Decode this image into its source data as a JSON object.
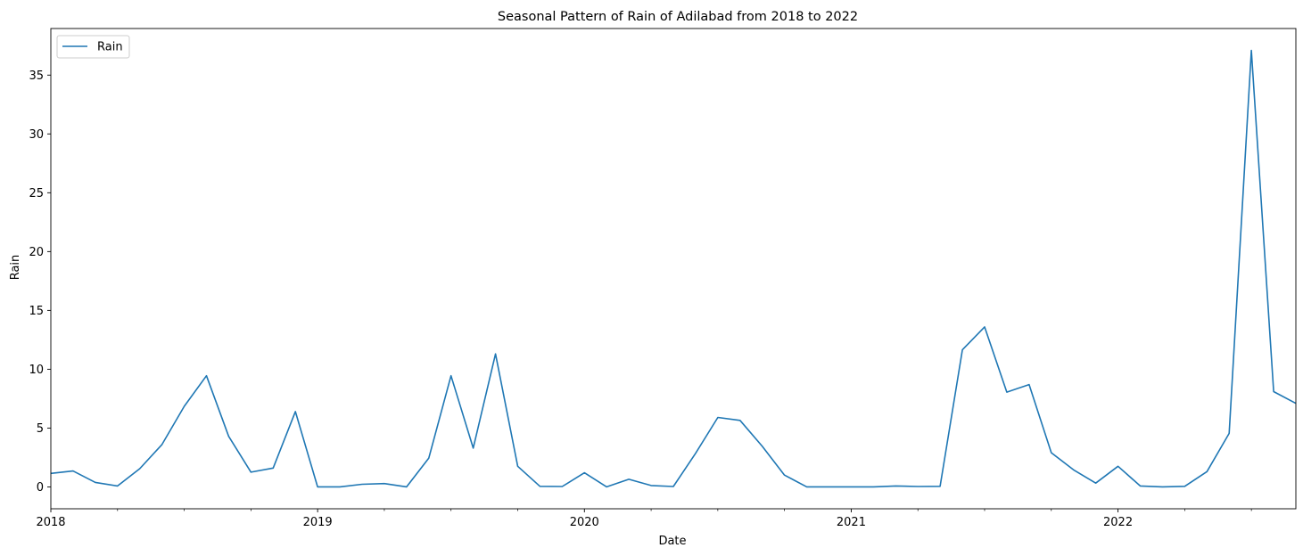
{
  "chart_data": {
    "type": "line",
    "title": "Seasonal Pattern of Rain of Adilabad from 2018 to 2022",
    "xlabel": "Date",
    "ylabel": "Rain",
    "x_range": [
      "2018-01",
      "2022-09"
    ],
    "ylim": [
      -1.86,
      38.96
    ],
    "yticks": [
      0,
      5,
      10,
      15,
      20,
      25,
      30,
      35
    ],
    "xticks_major": [
      "2018",
      "2019",
      "2020",
      "2021",
      "2022"
    ],
    "grid": false,
    "legend_position": "top-left",
    "x": [
      "2018-01",
      "2018-02",
      "2018-03",
      "2018-04",
      "2018-05",
      "2018-06",
      "2018-07",
      "2018-08",
      "2018-09",
      "2018-10",
      "2018-11",
      "2018-12",
      "2019-01",
      "2019-02",
      "2019-03",
      "2019-04",
      "2019-05",
      "2019-06",
      "2019-07",
      "2019-08",
      "2019-09",
      "2019-10",
      "2019-11",
      "2019-12",
      "2020-01",
      "2020-02",
      "2020-03",
      "2020-04",
      "2020-05",
      "2020-06",
      "2020-07",
      "2020-08",
      "2020-09",
      "2020-10",
      "2020-11",
      "2020-12",
      "2021-01",
      "2021-02",
      "2021-03",
      "2021-04",
      "2021-05",
      "2021-06",
      "2021-07",
      "2021-08",
      "2021-09",
      "2021-10",
      "2021-11",
      "2021-12",
      "2022-01",
      "2022-02",
      "2022-03",
      "2022-04",
      "2022-05",
      "2022-06",
      "2022-07",
      "2022-08",
      "2022-09"
    ],
    "series": [
      {
        "name": "Rain",
        "color": "#1f77b4",
        "values": [
          1.15,
          1.35,
          0.38,
          0.08,
          1.55,
          3.6,
          6.85,
          9.45,
          4.3,
          1.25,
          1.6,
          6.4,
          0.0,
          0.0,
          0.22,
          0.28,
          0.0,
          2.45,
          9.45,
          3.3,
          11.3,
          1.75,
          0.05,
          0.03,
          1.2,
          0.0,
          0.65,
          0.12,
          0.03,
          2.85,
          5.9,
          5.65,
          3.45,
          1.0,
          0.0,
          0.0,
          0.0,
          0.0,
          0.08,
          0.03,
          0.05,
          11.65,
          13.6,
          8.05,
          8.7,
          2.9,
          1.45,
          0.32,
          1.75,
          0.08,
          0.0,
          0.05,
          1.3,
          4.55,
          37.1,
          8.1,
          7.1
        ]
      }
    ]
  }
}
